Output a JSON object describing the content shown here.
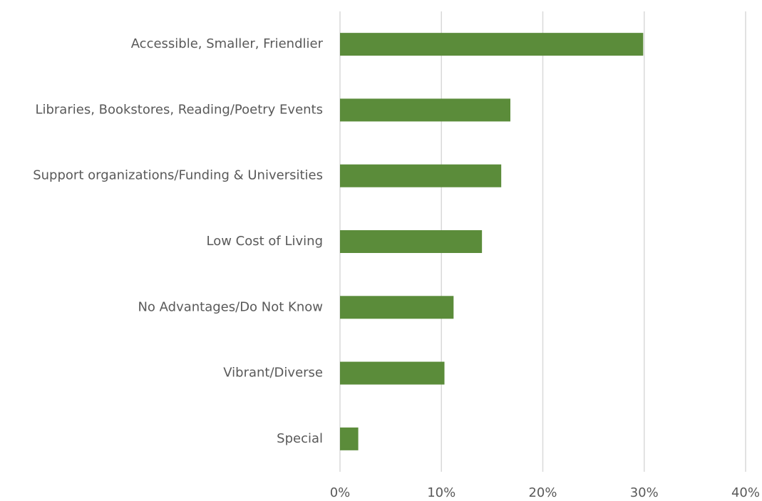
{
  "chart_data": {
    "type": "bar",
    "orientation": "horizontal",
    "categories": [
      "Accessible, Smaller, Friendlier",
      "Libraries, Bookstores, Reading/Poetry Events",
      "Support organizations/Funding & Universities",
      "Low Cost of Living",
      "No Advantages/Do Not Know",
      "Vibrant/Diverse",
      "Special"
    ],
    "values": [
      29.9,
      16.8,
      15.9,
      14.0,
      11.2,
      10.3,
      1.8
    ],
    "color": "#5b8c3a",
    "xlim": [
      0,
      40
    ],
    "xticks": [
      {
        "value": 0,
        "label": "0%"
      },
      {
        "value": 10,
        "label": "10%"
      },
      {
        "value": 20,
        "label": "20%"
      },
      {
        "value": 30,
        "label": "30%"
      },
      {
        "value": 40,
        "label": "40%"
      }
    ],
    "grid": true
  }
}
